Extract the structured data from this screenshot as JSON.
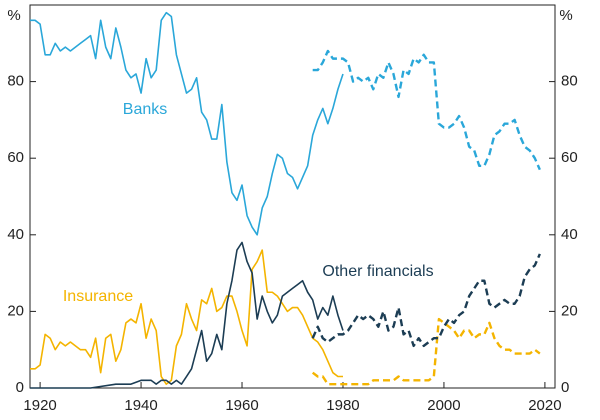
{
  "chart_data": {
    "type": "line",
    "x_unit_left": "%",
    "y_unit_right": "%",
    "xlim": [
      1918,
      2022
    ],
    "xticks": [
      1920,
      1940,
      1960,
      1980,
      2000,
      2020
    ],
    "ylim": [
      0,
      100
    ],
    "yticks": [
      0,
      20,
      40,
      60,
      80
    ],
    "y2lim": [
      0,
      100
    ],
    "y2ticks": [
      0,
      20,
      40,
      60,
      80
    ],
    "series": [
      {
        "name": "Banks",
        "color": "#2aa7d9",
        "segments": [
          {
            "style": "solid",
            "x": [
              1918,
              1919,
              1920,
              1921,
              1922,
              1923,
              1924,
              1925,
              1926,
              1927,
              1928,
              1929,
              1930,
              1931,
              1932,
              1933,
              1934,
              1935,
              1936,
              1937,
              1938,
              1939,
              1940,
              1941,
              1942,
              1943,
              1944,
              1945,
              1946,
              1947,
              1948,
              1949,
              1950,
              1951,
              1952,
              1953,
              1954,
              1955,
              1956,
              1957,
              1958,
              1959,
              1960,
              1961,
              1962,
              1963,
              1964,
              1965,
              1966,
              1967,
              1968,
              1969,
              1970,
              1971,
              1972,
              1973,
              1974,
              1975,
              1976,
              1977,
              1978,
              1979,
              1980
            ],
            "values": [
              96,
              96,
              95,
              87,
              87,
              90,
              88,
              89,
              88,
              89,
              90,
              91,
              92,
              86,
              96,
              89,
              86,
              94,
              89,
              83,
              81,
              82,
              77,
              86,
              81,
              83,
              96,
              98,
              97,
              87,
              82,
              77,
              78,
              81,
              72,
              70,
              65,
              65,
              74,
              59,
              51,
              49,
              53,
              45,
              42,
              40,
              47,
              50,
              56,
              61,
              60,
              56,
              55,
              52,
              55,
              58,
              66,
              70,
              73,
              69,
              73,
              78,
              82
            ]
          },
          {
            "style": "dashed",
            "x": [
              1974,
              1975,
              1976,
              1977,
              1978,
              1979,
              1980,
              1981,
              1982,
              1983,
              1984,
              1985,
              1986,
              1987,
              1988,
              1989,
              1990,
              1991,
              1992,
              1993,
              1994,
              1995,
              1996,
              1997,
              1998,
              1999,
              2000,
              2001,
              2002,
              2003,
              2004,
              2005,
              2006,
              2007,
              2008,
              2009,
              2010,
              2011,
              2012,
              2013,
              2014,
              2015,
              2016,
              2017,
              2018,
              2019
            ],
            "values": [
              83,
              83,
              85,
              88,
              86,
              86,
              86,
              85,
              80,
              81,
              80,
              81,
              78,
              82,
              81,
              85,
              82,
              76,
              83,
              82,
              86,
              85,
              87,
              85,
              85,
              69,
              68,
              68,
              69,
              71,
              68,
              63,
              62,
              58,
              58,
              61,
              66,
              67,
              69,
              69,
              70,
              66,
              63,
              62,
              60,
              57
            ]
          }
        ]
      },
      {
        "name": "Insurance",
        "color": "#f4b400",
        "segments": [
          {
            "style": "solid",
            "x": [
              1918,
              1919,
              1920,
              1921,
              1922,
              1923,
              1924,
              1925,
              1926,
              1927,
              1928,
              1929,
              1930,
              1931,
              1932,
              1933,
              1934,
              1935,
              1936,
              1937,
              1938,
              1939,
              1940,
              1941,
              1942,
              1943,
              1944,
              1945,
              1946,
              1947,
              1948,
              1949,
              1950,
              1951,
              1952,
              1953,
              1954,
              1955,
              1956,
              1957,
              1958,
              1959,
              1960,
              1961,
              1962,
              1963,
              1964,
              1965,
              1966,
              1967,
              1968,
              1969,
              1970,
              1971,
              1972,
              1973,
              1974,
              1975,
              1976,
              1977,
              1978,
              1979,
              1980
            ],
            "values": [
              5,
              5,
              6,
              14,
              13,
              10,
              12,
              11,
              12,
              11,
              10,
              10,
              8,
              13,
              4,
              13,
              14,
              7,
              10,
              17,
              18,
              17,
              22,
              13,
              18,
              15,
              3,
              1,
              2,
              11,
              14,
              22,
              18,
              15,
              23,
              22,
              26,
              20,
              21,
              24,
              24,
              20,
              15,
              11,
              31,
              33,
              36,
              25,
              25,
              24,
              22,
              20,
              21,
              21,
              19,
              16,
              13,
              12,
              10,
              7,
              4,
              3,
              3
            ]
          },
          {
            "style": "dashed",
            "x": [
              1974,
              1975,
              1976,
              1977,
              1978,
              1979,
              1980,
              1981,
              1982,
              1983,
              1984,
              1985,
              1986,
              1987,
              1988,
              1989,
              1990,
              1991,
              1992,
              1993,
              1994,
              1995,
              1996,
              1997,
              1998,
              1999,
              2000,
              2001,
              2002,
              2003,
              2004,
              2005,
              2006,
              2007,
              2008,
              2009,
              2010,
              2011,
              2012,
              2013,
              2014,
              2015,
              2016,
              2017,
              2018,
              2019
            ],
            "values": [
              4,
              3,
              3,
              1,
              1,
              1,
              1,
              1,
              1,
              1,
              1,
              1,
              2,
              2,
              2,
              2,
              2,
              3,
              2,
              2,
              2,
              2,
              2,
              2,
              3,
              18,
              17,
              16,
              15,
              13,
              15,
              15,
              13,
              14,
              14,
              17,
              13,
              11,
              10,
              10,
              9,
              9,
              9,
              9,
              10,
              9
            ]
          }
        ]
      },
      {
        "name": "Other financials",
        "color": "#1c3d54",
        "segments": [
          {
            "style": "solid",
            "x": [
              1918,
              1920,
              1922,
              1925,
              1930,
              1935,
              1938,
              1940,
              1942,
              1943,
              1944,
              1945,
              1946,
              1947,
              1948,
              1949,
              1950,
              1951,
              1952,
              1953,
              1954,
              1955,
              1956,
              1957,
              1958,
              1959,
              1960,
              1961,
              1962,
              1963,
              1964,
              1965,
              1966,
              1967,
              1968,
              1969,
              1970,
              1971,
              1972,
              1973,
              1974,
              1975,
              1976,
              1977,
              1978,
              1979,
              1980
            ],
            "values": [
              0,
              0,
              0,
              0,
              0,
              1,
              1,
              2,
              2,
              1,
              2,
              2,
              1,
              2,
              1,
              3,
              5,
              10,
              15,
              7,
              9,
              14,
              10,
              22,
              28,
              36,
              38,
              33,
              30,
              18,
              24,
              20,
              17,
              19,
              24,
              25,
              26,
              27,
              28,
              25,
              23,
              18,
              21,
              19,
              24,
              19,
              15
            ]
          },
          {
            "style": "dashed",
            "x": [
              1974,
              1975,
              1976,
              1977,
              1978,
              1979,
              1980,
              1981,
              1982,
              1983,
              1984,
              1985,
              1986,
              1987,
              1988,
              1989,
              1990,
              1991,
              1992,
              1993,
              1994,
              1995,
              1996,
              1997,
              1998,
              1999,
              2000,
              2001,
              2002,
              2003,
              2004,
              2005,
              2006,
              2007,
              2008,
              2009,
              2010,
              2011,
              2012,
              2013,
              2014,
              2015,
              2016,
              2017,
              2018,
              2019
            ],
            "values": [
              13,
              16,
              13,
              12,
              13,
              14,
              14,
              15,
              17,
              19,
              18,
              19,
              18,
              16,
              20,
              15,
              16,
              21,
              14,
              15,
              11,
              13,
              11,
              12,
              13,
              13,
              16,
              18,
              17,
              19,
              20,
              24,
              26,
              28,
              28,
              22,
              21,
              22,
              23,
              22,
              22,
              24,
              29,
              31,
              32,
              35
            ]
          }
        ]
      }
    ]
  }
}
